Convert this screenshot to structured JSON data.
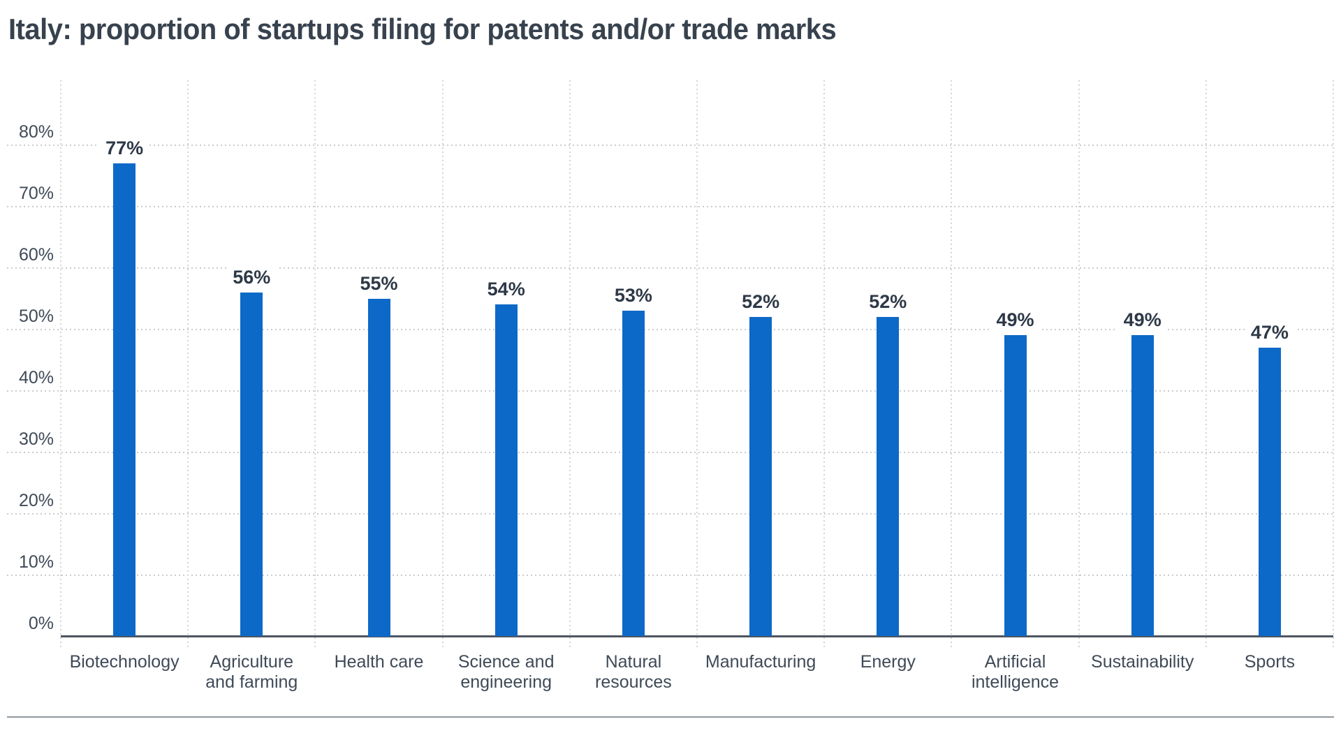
{
  "title": "Italy: proportion of startups filing for patents and/or trade marks",
  "chart_data": {
    "type": "bar",
    "title": "Italy: proportion of startups filing for patents and/or trade marks",
    "categories": [
      "Biotechnology",
      "Agriculture\nand farming",
      "Health care",
      "Science and\nengineering",
      "Natural\nresources",
      "Manufacturing",
      "Energy",
      "Artificial\nintelligence",
      "Sustainability",
      "Sports"
    ],
    "values": [
      77,
      56,
      55,
      54,
      53,
      52,
      52,
      49,
      49,
      47
    ],
    "unit": "%",
    "data_labels": [
      "77%",
      "56%",
      "55%",
      "54%",
      "53%",
      "52%",
      "52%",
      "49%",
      "49%",
      "47%"
    ],
    "xlabel": "",
    "ylabel": "",
    "ylim": [
      0,
      90
    ],
    "yticks": [
      0,
      10,
      20,
      30,
      40,
      50,
      60,
      70,
      80
    ],
    "ytick_labels": [
      "0%",
      "10%",
      "20%",
      "30%",
      "40%",
      "50%",
      "60%",
      "70%",
      "80%"
    ],
    "grid": "dotted horizontal and vertical gridlines",
    "legend": "none",
    "colors": {
      "bar": "#0d69c8",
      "title_text": "#37424e",
      "axis_label_text": "#3f4a57",
      "value_label_text": "#2e3947",
      "baseline_axis": "#4d5661",
      "gridline": "#c9ccce",
      "bottom_separator": "#8f989e",
      "background": "#ffffff"
    }
  }
}
